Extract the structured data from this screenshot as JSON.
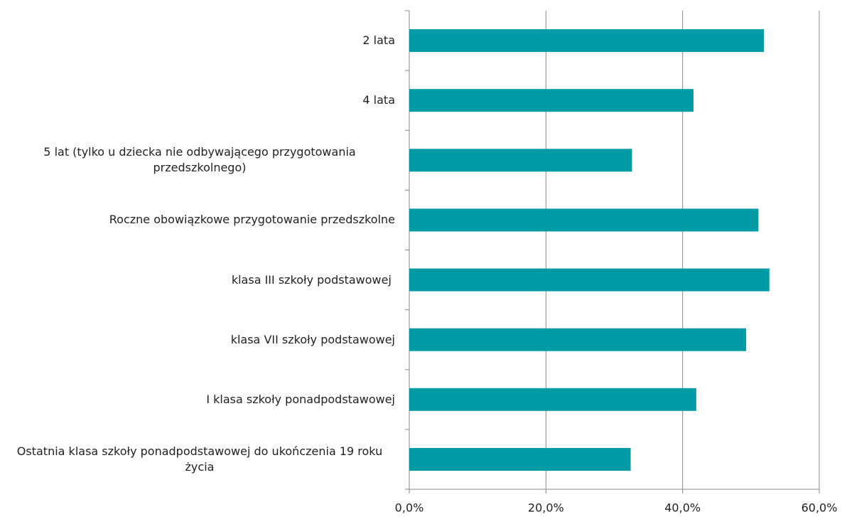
{
  "chart_data": {
    "type": "barh",
    "categories": [
      "2 lata",
      "4 lata",
      "5 lat (tylko u dziecka nie odbywającego przygotowania przedszkolnego)",
      "Roczne obowiązkowe przygotowanie przedszkolne",
      "klasa III szkoły podstawowej ",
      "klasa VII szkoły podstawowej",
      "I klasa szkoły ponadpodstawowej",
      "Ostatnia klasa szkoły ponadpodstawowej do ukończenia 19 roku życia"
    ],
    "values": [
      51.9,
      41.6,
      32.6,
      51.1,
      52.7,
      49.3,
      42.0,
      32.4
    ],
    "color": "#009ba4",
    "xlim": [
      0,
      60
    ],
    "xticks": [
      {
        "value": 0,
        "label": "0,0%"
      },
      {
        "value": 20,
        "label": "20,0%"
      },
      {
        "value": 40,
        "label": "40,0%"
      },
      {
        "value": 60,
        "label": "60,0%"
      }
    ],
    "grid": true
  }
}
